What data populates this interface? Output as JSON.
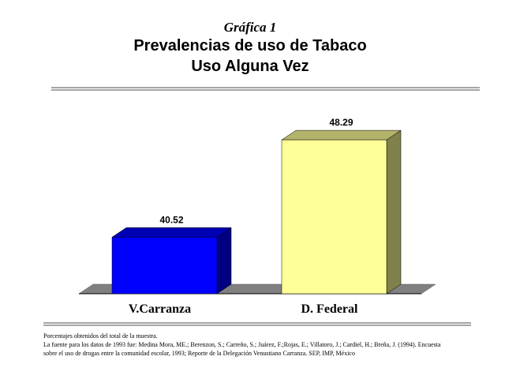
{
  "chart_data": {
    "type": "bar3d",
    "subtitle": "Gráfica 1",
    "title": [
      "Prevalencias de uso de Tabaco",
      "Uso Alguna Vez"
    ],
    "categories": [
      "V.Carranza",
      "D. Federal"
    ],
    "values": [
      40.52,
      48.29
    ],
    "colors": [
      "#0000ff",
      "#ffff99"
    ],
    "ylim": [
      36,
      50
    ],
    "notes": [
      "Porcentajes obtenidos del total de la muestra.",
      "La fuente para los datos de 1993 fue: Medina Mora, ME.; Berenzon, S.; Carreño, S.; Juárez, F.;Rojas, E.; Villatoro, J.; Cardiel, H.; Breña, J. (1994). Encuesta",
      "sobre el uso de drogas entre la comunidad escolar, 1993; Reporte de la Delegación Venustiano Carranza. SEP, IMP, México"
    ]
  }
}
